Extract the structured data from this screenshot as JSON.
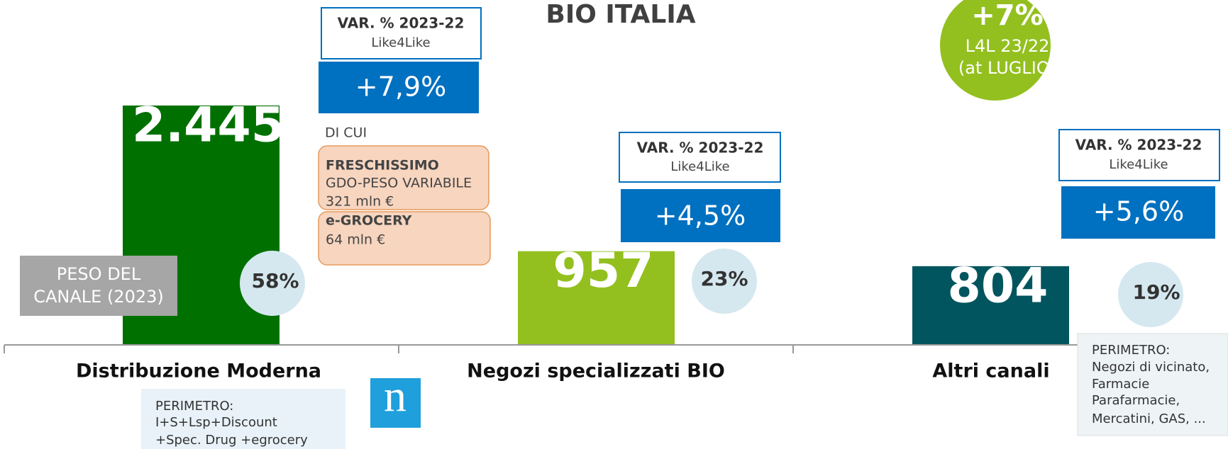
{
  "title": "BIO ITALIA",
  "headline": {
    "value": "+7%",
    "line1": "L4L 23/22",
    "line2": "(at LUGLIO)"
  },
  "chart_data": {
    "type": "bar",
    "categories": [
      "Distribuzione Moderna",
      "Negozi specializzati BIO",
      "Altri canali"
    ],
    "values": [
      2445,
      957,
      804
    ],
    "value_labels": [
      "2.445",
      "957",
      "804"
    ],
    "colors": [
      "#007000",
      "#93c01f",
      "#00555e"
    ]
  },
  "variations": [
    {
      "label": "VAR. % 2023-22",
      "sub": "Like4Like",
      "value": "+7,9%"
    },
    {
      "label": "VAR. % 2023-22",
      "sub": "Like4Like",
      "value": "+4,5%"
    },
    {
      "label": "VAR. % 2023-22",
      "sub": "Like4Like",
      "value": "+5,6%"
    }
  ],
  "share_label": [
    "PESO DEL",
    "CANALE (2023)"
  ],
  "shares": [
    "58%",
    "23%",
    "19%"
  ],
  "breakdown": {
    "heading": "DI CUI",
    "items": [
      {
        "name": "FRESCHISSIMO",
        "lines": [
          "GDO-PESO VARIABILE",
          "321 mln €"
        ]
      },
      {
        "name": "e-GROCERY",
        "lines": [
          "64 mln €"
        ]
      }
    ]
  },
  "perimeters": [
    {
      "lines": [
        "PERIMETRO:",
        "I+S+Lsp+Discount",
        "+Spec. Drug +egrocery"
      ]
    },
    {
      "lines": [
        "PERIMETRO:",
        "Negozi di vicinato,",
        "Farmacie",
        "Parafarmacie,",
        "Mercatini, GAS, ..."
      ]
    }
  ],
  "logo": "n"
}
